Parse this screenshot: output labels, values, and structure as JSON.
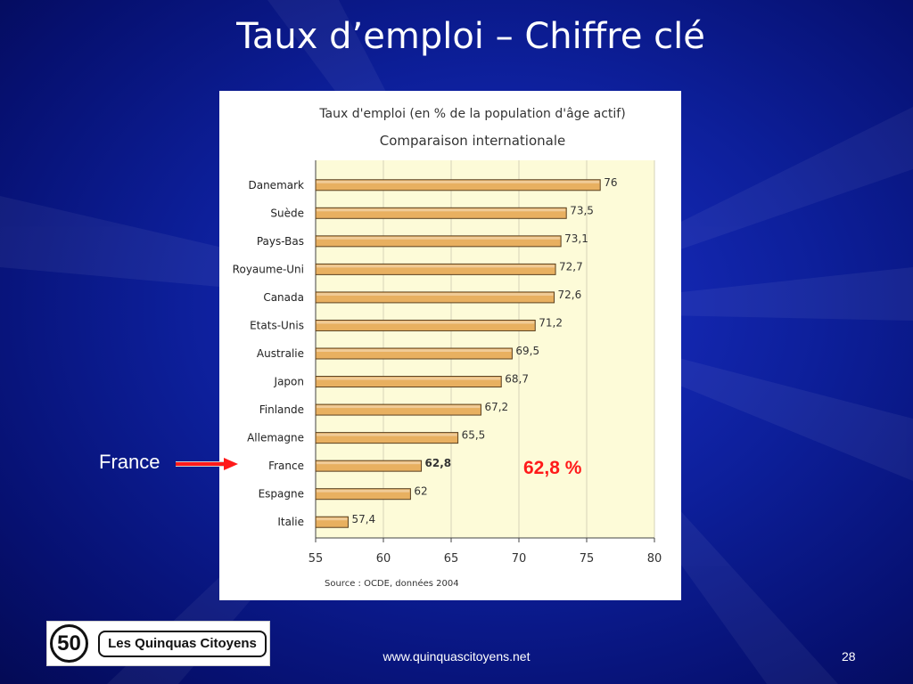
{
  "slide": {
    "title": "Taux d’emploi – Chiffre clé",
    "callout_label": "France",
    "highlight_value": "62,8 %",
    "footer_url": "www.quinquascitoyens.net",
    "page_number": "28",
    "logo_number": "50",
    "logo_text": "Les Quinquas Citoyens"
  },
  "chart_data": {
    "type": "bar",
    "orientation": "horizontal",
    "title": "Taux d'emploi (en % de la population d'âge actif)",
    "subtitle": "Comparaison internationale",
    "source": "Source : OCDE, données 2004",
    "categories": [
      "Danemark",
      "Suède",
      "Pays-Bas",
      "Royaume-Uni",
      "Canada",
      "Etats-Unis",
      "Australie",
      "Japon",
      "Finlande",
      "Allemagne",
      "France",
      "Espagne",
      "Italie"
    ],
    "values": [
      76,
      73.5,
      73.1,
      72.7,
      72.6,
      71.2,
      69.5,
      68.7,
      67.2,
      65.5,
      62.8,
      62,
      57.4
    ],
    "value_labels": [
      "76",
      "73,5",
      "73,1",
      "72,7",
      "72,6",
      "71,2",
      "69,5",
      "68,7",
      "67,2",
      "65,5",
      "62,8",
      "62",
      "57,4"
    ],
    "highlighted_category": "France",
    "xlim": [
      55,
      80
    ],
    "xticks": [
      "55",
      "60",
      "65",
      "70",
      "75",
      "80"
    ],
    "grid": true,
    "colors": {
      "bar": "#e8b060",
      "plot_background": "#fdfbd8",
      "title": "#333333"
    }
  }
}
